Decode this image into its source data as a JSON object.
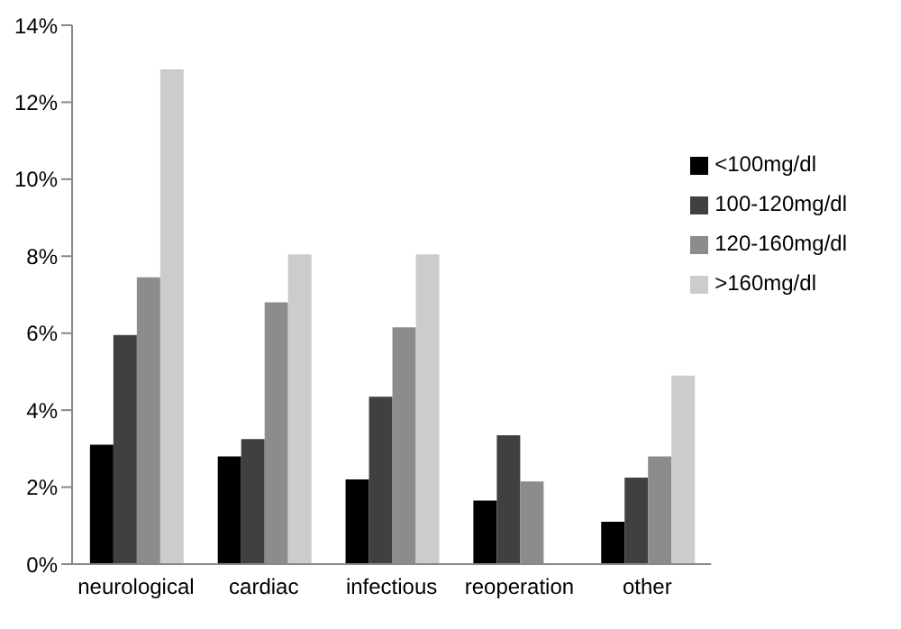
{
  "chart_data": {
    "type": "bar",
    "categories": [
      "neurological",
      "cardiac",
      "infectious",
      "reoperation",
      "other"
    ],
    "series": [
      {
        "name": "<100mg/dl",
        "color": "#000000",
        "values": [
          3.1,
          2.8,
          2.2,
          1.65,
          1.1
        ]
      },
      {
        "name": "100-120mg/dl",
        "color": "#404040",
        "values": [
          5.95,
          3.25,
          4.35,
          3.35,
          2.25
        ]
      },
      {
        "name": "120-160mg/dl",
        "color": "#8c8c8c",
        "values": [
          7.45,
          6.8,
          6.15,
          2.15,
          2.8
        ]
      },
      {
        "name": ">160mg/dl",
        "color": "#cccccc",
        "values": [
          12.85,
          8.05,
          8.05,
          null,
          4.9
        ]
      }
    ],
    "ylim": [
      0,
      14
    ],
    "yticks": [
      {
        "value": 0,
        "label": "0%"
      },
      {
        "value": 2,
        "label": "2%"
      },
      {
        "value": 4,
        "label": "4%"
      },
      {
        "value": 6,
        "label": "6%"
      },
      {
        "value": 8,
        "label": "8%"
      },
      {
        "value": 10,
        "label": "10%"
      },
      {
        "value": 12,
        "label": "12%"
      },
      {
        "value": 14,
        "label": "14%"
      }
    ],
    "grid": false,
    "legend": "right"
  }
}
